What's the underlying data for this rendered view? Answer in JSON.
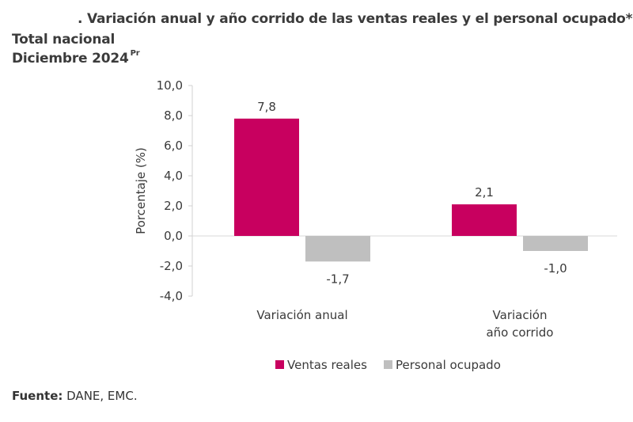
{
  "header": {
    "title": ". Variación anual y año corrido de las ventas reales y el personal ocupado*",
    "subtitle_line1": "Total nacional",
    "subtitle_line2": "Diciembre 2024",
    "subtitle_sup": "Pr"
  },
  "footer": {
    "source_label": "Fuente:",
    "source_text": " DANE, EMC."
  },
  "chart_data": {
    "type": "bar",
    "title": ". Variación anual y año corrido de las ventas reales y el personal ocupado*",
    "subtitle": "Total nacional, Diciembre 2024 Pr",
    "xlabel": "",
    "ylabel": "Porcentaje (%)",
    "ylim": [
      -4.0,
      10.0
    ],
    "yticks": [
      10.0,
      8.0,
      6.0,
      4.0,
      2.0,
      0.0,
      -2.0,
      -4.0
    ],
    "ytick_labels": [
      "10,0",
      "8,0",
      "6,0",
      "4,0",
      "2,0",
      "0,0",
      "-2,0",
      "-4,0"
    ],
    "categories": [
      [
        "Variación anual"
      ],
      [
        "Variación",
        "año corrido"
      ]
    ],
    "series": [
      {
        "name": "Ventas reales",
        "color": "#c8005f",
        "values": [
          7.8,
          2.1
        ],
        "labels": [
          "7,8",
          "2,1"
        ]
      },
      {
        "name": "Personal ocupado",
        "color": "#bfbfbf",
        "values": [
          -1.7,
          -1.0
        ],
        "labels": [
          "-1,7",
          "-1,0"
        ]
      }
    ],
    "grid": false,
    "legend_position": "bottom"
  }
}
